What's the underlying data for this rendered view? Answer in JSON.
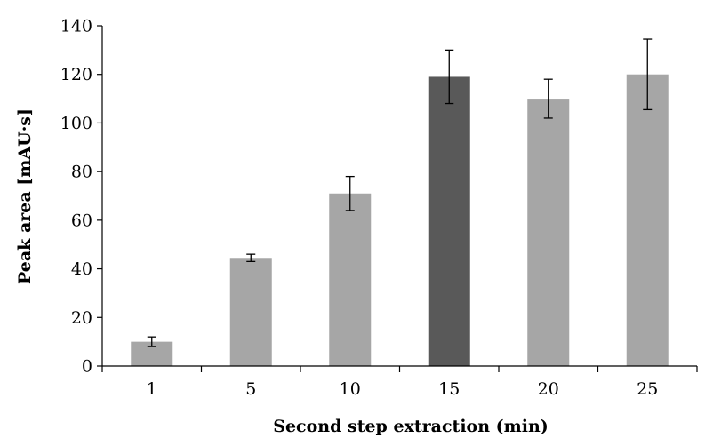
{
  "chart_data": {
    "type": "bar",
    "xlabel": "Second step extraction (min)",
    "ylabel": "Peak area [mAU·s]",
    "categories": [
      "1",
      "5",
      "10",
      "15",
      "20",
      "25"
    ],
    "values": [
      10,
      44.5,
      71,
      119,
      110,
      120
    ],
    "errors": [
      2,
      1.5,
      7,
      11,
      8,
      14.5
    ],
    "ylim": [
      0,
      140
    ],
    "yticks": [
      "0",
      "20",
      "40",
      "60",
      "80",
      "100",
      "120",
      "140"
    ],
    "grid": false,
    "legend": "none",
    "bar_colors": [
      "#a6a6a6",
      "#a6a6a6",
      "#a6a6a6",
      "#595959",
      "#a6a6a6",
      "#a6a6a6"
    ]
  }
}
